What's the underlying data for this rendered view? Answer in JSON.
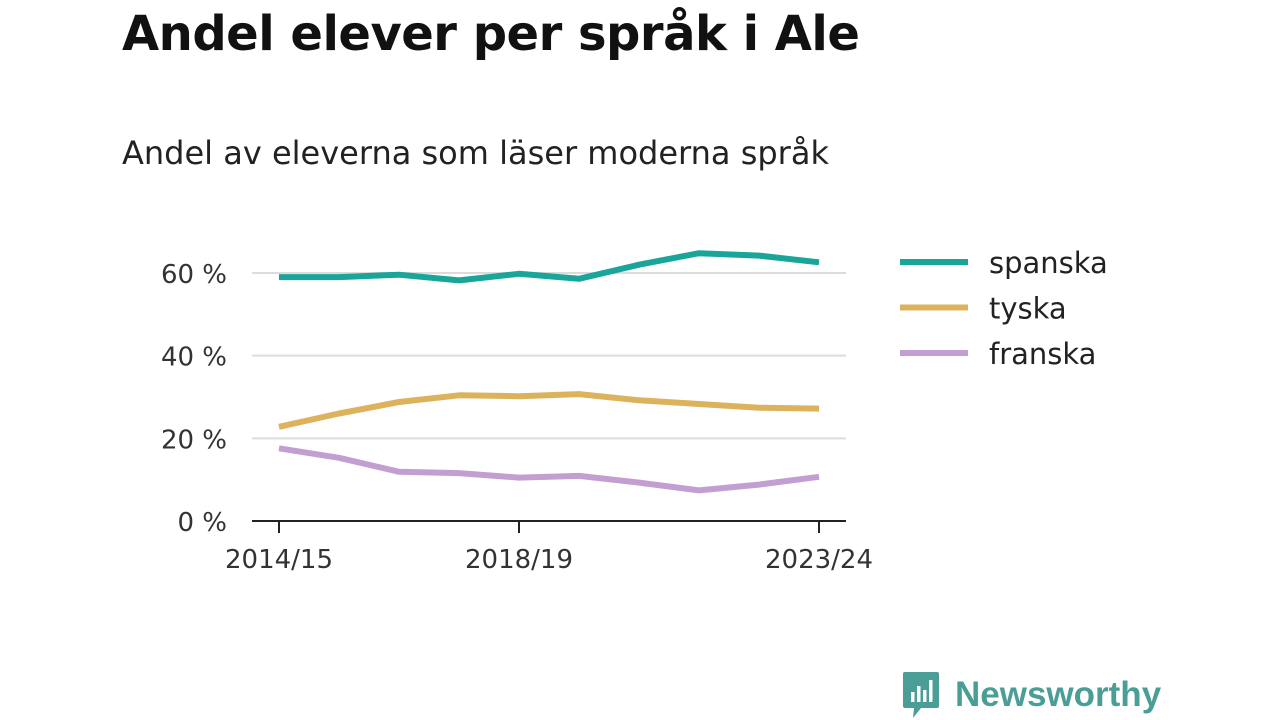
{
  "page": {
    "title": "Andel elever per språk i Ale",
    "subtitle": "Andel av eleverna som läser moderna språk"
  },
  "chart_data": {
    "type": "line",
    "x": [
      "2014/15",
      "2015/16",
      "2016/17",
      "2017/18",
      "2018/19",
      "2019/20",
      "2020/21",
      "2021/22",
      "2022/23",
      "2023/24"
    ],
    "x_tick_labels": [
      "2014/15",
      "2018/19",
      "2023/24"
    ],
    "y_ticks": [
      0,
      20,
      40,
      60
    ],
    "y_tick_labels": [
      "0 %",
      "20 %",
      "40 %",
      "60 %"
    ],
    "ylim": [
      0,
      68
    ],
    "grid": true,
    "legend_position": "right",
    "series": [
      {
        "name": "spanska",
        "color": "#1aa59a",
        "values": [
          59,
          59,
          59.6,
          58.2,
          59.8,
          58.6,
          62,
          64.8,
          64.2,
          62.6
        ]
      },
      {
        "name": "tyska",
        "color": "#dcb25c",
        "values": [
          22.8,
          26,
          28.8,
          30.4,
          30.2,
          30.7,
          29.2,
          28.3,
          27.4,
          27.2
        ]
      },
      {
        "name": "franska",
        "color": "#c29fd0",
        "values": [
          17.6,
          15.3,
          11.9,
          11.6,
          10.5,
          10.9,
          9.3,
          7.4,
          8.8,
          10.7
        ]
      }
    ]
  },
  "brand": {
    "name": "Newsworthy",
    "logo_icon": "bar-chart-icon",
    "logo_color": "#4a9e96"
  }
}
